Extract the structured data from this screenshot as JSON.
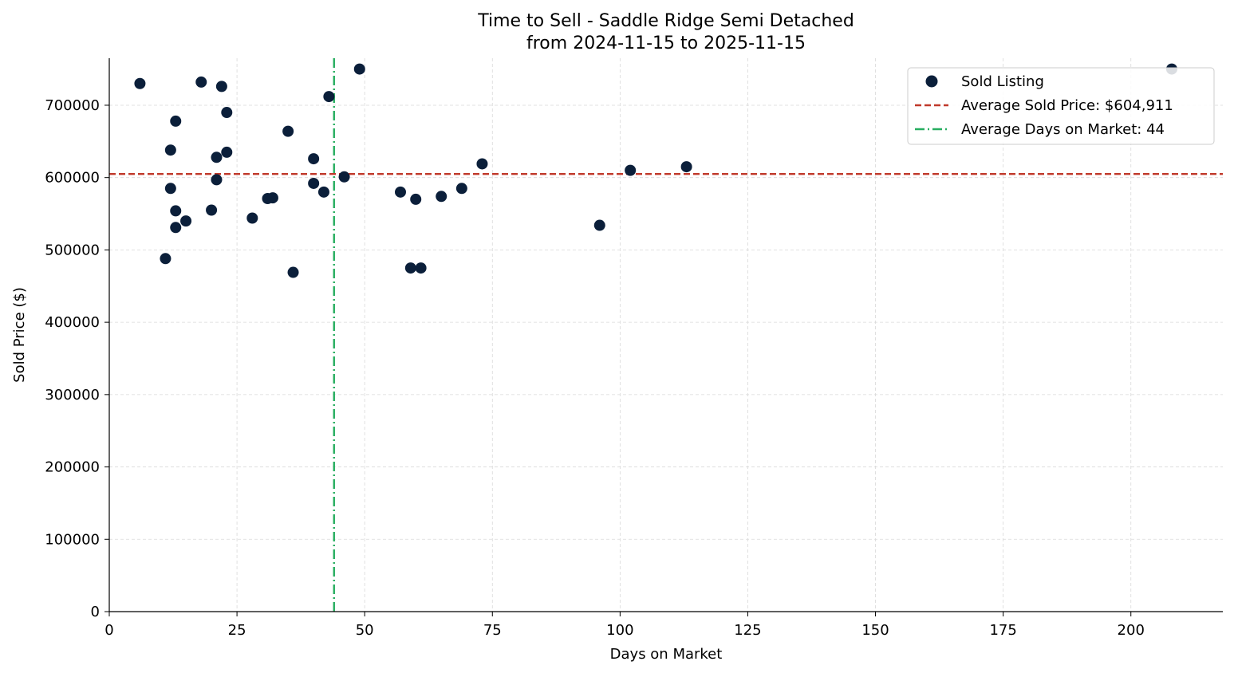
{
  "chart_data": {
    "type": "scatter",
    "title_line1": "Time to Sell - Saddle Ridge Semi Detached",
    "title_line2": "from 2024-11-15 to 2025-11-15",
    "xlabel": "Days on Market",
    "ylabel": "Sold Price ($)",
    "xlim": [
      0,
      218
    ],
    "ylim": [
      0,
      765000
    ],
    "xticks": [
      0,
      25,
      50,
      75,
      100,
      125,
      150,
      175,
      200
    ],
    "yticks": [
      0,
      100000,
      200000,
      300000,
      400000,
      500000,
      600000,
      700000
    ],
    "grid": true,
    "legend_position": "top-right",
    "series": [
      {
        "name": "Sold Listing",
        "color": "#0b1f3a",
        "points": [
          {
            "x": 6,
            "y": 730000
          },
          {
            "x": 11,
            "y": 488000
          },
          {
            "x": 12,
            "y": 638000
          },
          {
            "x": 12,
            "y": 585000
          },
          {
            "x": 13,
            "y": 678000
          },
          {
            "x": 13,
            "y": 554000
          },
          {
            "x": 13,
            "y": 531000
          },
          {
            "x": 15,
            "y": 540000
          },
          {
            "x": 18,
            "y": 732000
          },
          {
            "x": 20,
            "y": 555000
          },
          {
            "x": 21,
            "y": 628000
          },
          {
            "x": 21,
            "y": 597000
          },
          {
            "x": 22,
            "y": 726000
          },
          {
            "x": 23,
            "y": 690000
          },
          {
            "x": 23,
            "y": 635000
          },
          {
            "x": 28,
            "y": 544000
          },
          {
            "x": 31,
            "y": 571000
          },
          {
            "x": 32,
            "y": 572000
          },
          {
            "x": 35,
            "y": 664000
          },
          {
            "x": 36,
            "y": 469000
          },
          {
            "x": 40,
            "y": 626000
          },
          {
            "x": 40,
            "y": 592000
          },
          {
            "x": 42,
            "y": 580000
          },
          {
            "x": 43,
            "y": 712000
          },
          {
            "x": 46,
            "y": 601000
          },
          {
            "x": 49,
            "y": 750000
          },
          {
            "x": 57,
            "y": 580000
          },
          {
            "x": 59,
            "y": 475000
          },
          {
            "x": 60,
            "y": 570000
          },
          {
            "x": 61,
            "y": 475000
          },
          {
            "x": 65,
            "y": 574000
          },
          {
            "x": 69,
            "y": 585000
          },
          {
            "x": 73,
            "y": 619000
          },
          {
            "x": 96,
            "y": 534000
          },
          {
            "x": 102,
            "y": 610000
          },
          {
            "x": 113,
            "y": 615000
          },
          {
            "x": 208,
            "y": 750000
          }
        ]
      }
    ],
    "reference_lines": [
      {
        "name": "Average Sold Price: $604,911",
        "orientation": "horizontal",
        "value": 604911,
        "color": "#c0392b",
        "style": "dashed"
      },
      {
        "name": "Average Days on Market: 44",
        "orientation": "vertical",
        "value": 44,
        "color": "#27ae60",
        "style": "dashdot"
      }
    ],
    "legend": [
      {
        "label": "Sold Listing",
        "kind": "marker",
        "color": "#0b1f3a"
      },
      {
        "label": "Average Sold Price: $604,911",
        "kind": "dashed",
        "color": "#c0392b"
      },
      {
        "label": "Average Days on Market: 44",
        "kind": "dashdot",
        "color": "#27ae60"
      }
    ]
  }
}
